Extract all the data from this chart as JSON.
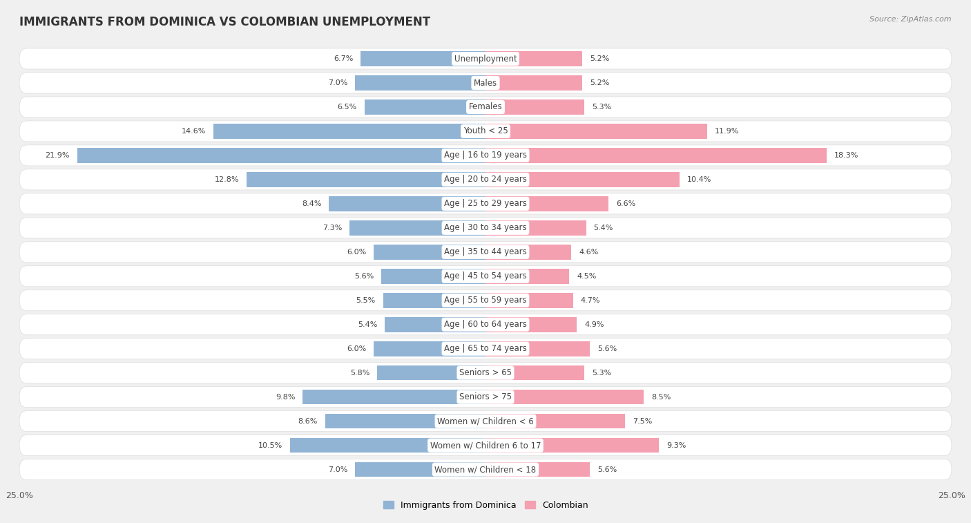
{
  "title": "IMMIGRANTS FROM DOMINICA VS COLOMBIAN UNEMPLOYMENT",
  "source": "Source: ZipAtlas.com",
  "categories": [
    "Unemployment",
    "Males",
    "Females",
    "Youth < 25",
    "Age | 16 to 19 years",
    "Age | 20 to 24 years",
    "Age | 25 to 29 years",
    "Age | 30 to 34 years",
    "Age | 35 to 44 years",
    "Age | 45 to 54 years",
    "Age | 55 to 59 years",
    "Age | 60 to 64 years",
    "Age | 65 to 74 years",
    "Seniors > 65",
    "Seniors > 75",
    "Women w/ Children < 6",
    "Women w/ Children 6 to 17",
    "Women w/ Children < 18"
  ],
  "dominica_values": [
    6.7,
    7.0,
    6.5,
    14.6,
    21.9,
    12.8,
    8.4,
    7.3,
    6.0,
    5.6,
    5.5,
    5.4,
    6.0,
    5.8,
    9.8,
    8.6,
    10.5,
    7.0
  ],
  "colombian_values": [
    5.2,
    5.2,
    5.3,
    11.9,
    18.3,
    10.4,
    6.6,
    5.4,
    4.6,
    4.5,
    4.7,
    4.9,
    5.6,
    5.3,
    8.5,
    7.5,
    9.3,
    5.6
  ],
  "dominica_color": "#92b4d4",
  "colombian_color": "#f4a0b0",
  "dominica_label": "Immigrants from Dominica",
  "colombian_label": "Colombian",
  "x_max": 25.0,
  "background_color": "#f0f0f0",
  "row_color_light": "#f7f7f7",
  "row_color_dark": "#e8e8e8",
  "title_fontsize": 12,
  "label_fontsize": 8.5,
  "value_fontsize": 8.0,
  "axis_label_fontsize": 9
}
